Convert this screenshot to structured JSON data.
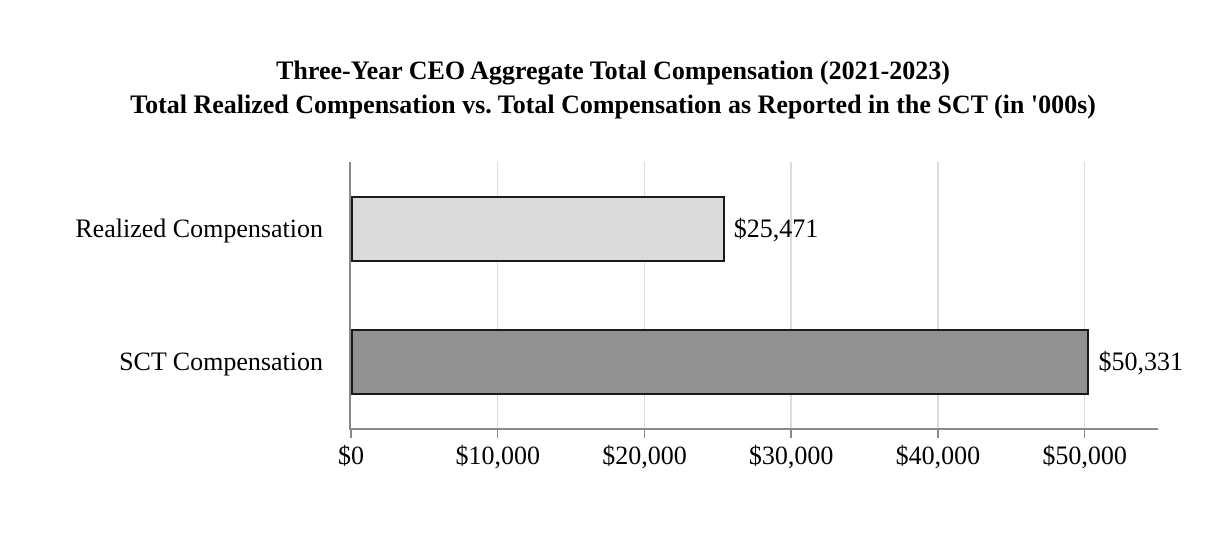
{
  "title": {
    "line1": "Three-Year CEO Aggregate Total Compensation (2021-2023)",
    "line2": "Total Realized Compensation vs. Total Compensation as Reported in the SCT (in '000s)"
  },
  "chart_data": {
    "type": "bar",
    "orientation": "horizontal",
    "title": "Three-Year CEO Aggregate Total Compensation (2021-2023)",
    "subtitle": "Total Realized Compensation vs. Total Compensation as Reported in the SCT (in '000s)",
    "categories": [
      "Realized Compensation",
      "SCT Compensation"
    ],
    "values": [
      25471,
      50331
    ],
    "value_labels": [
      "$25,471",
      "$50,331"
    ],
    "xlim": [
      0,
      55000
    ],
    "x_ticks": [
      0,
      10000,
      20000,
      30000,
      40000,
      50000
    ],
    "x_tick_labels": [
      "$0",
      "$10,000",
      "$20,000",
      "$30,000",
      "$40,000",
      "$50,000"
    ],
    "grid": "vertical-gridlines",
    "legend": "none",
    "colors": {
      "bar_fills": [
        "#dbdbdb",
        "#919191"
      ],
      "bar_border": "#1a1a1a",
      "gridline": "#dcdcdc",
      "axis_line": "#8a8a8a",
      "text": "#000000"
    }
  }
}
